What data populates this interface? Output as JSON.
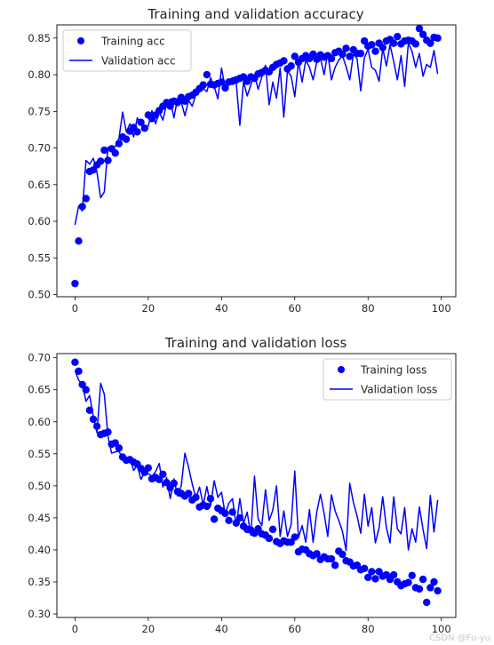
{
  "chart_data": [
    {
      "type": "line",
      "title": "Training and validation accuracy",
      "xlabel": "",
      "ylabel": "",
      "xlim": [
        -4.95,
        103.95
      ],
      "ylim": [
        0.497,
        0.868
      ],
      "xticks": [
        0,
        20,
        40,
        60,
        80,
        100
      ],
      "xtick_labels": [
        "0",
        "20",
        "40",
        "60",
        "80",
        "100"
      ],
      "yticks": [
        0.5,
        0.55,
        0.6,
        0.65,
        0.7,
        0.75,
        0.8,
        0.85
      ],
      "ytick_labels": [
        "0.50",
        "0.55",
        "0.60",
        "0.65",
        "0.70",
        "0.75",
        "0.80",
        "0.85"
      ],
      "grid": false,
      "legend_position": "top-left",
      "series": [
        {
          "name": "Training acc",
          "style": "scatter",
          "color": "#0000ff",
          "x": [
            0,
            1,
            2,
            3,
            4,
            5,
            6,
            7,
            8,
            9,
            10,
            11,
            12,
            13,
            14,
            15,
            16,
            17,
            18,
            19,
            20,
            21,
            22,
            23,
            24,
            25,
            26,
            27,
            28,
            29,
            30,
            31,
            32,
            33,
            34,
            35,
            36,
            37,
            38,
            39,
            40,
            41,
            42,
            43,
            44,
            45,
            46,
            47,
            48,
            49,
            50,
            51,
            52,
            53,
            54,
            55,
            56,
            57,
            58,
            59,
            60,
            61,
            62,
            63,
            64,
            65,
            66,
            67,
            68,
            69,
            70,
            71,
            72,
            73,
            74,
            75,
            76,
            77,
            78,
            79,
            80,
            81,
            82,
            83,
            84,
            85,
            86,
            87,
            88,
            89,
            90,
            91,
            92,
            93,
            94,
            95,
            96,
            97,
            98,
            99
          ],
          "values": [
            0.515,
            0.573,
            0.62,
            0.631,
            0.668,
            0.67,
            0.677,
            0.682,
            0.697,
            0.683,
            0.699,
            0.693,
            0.706,
            0.715,
            0.712,
            0.723,
            0.728,
            0.722,
            0.735,
            0.727,
            0.745,
            0.74,
            0.745,
            0.751,
            0.757,
            0.762,
            0.757,
            0.764,
            0.762,
            0.769,
            0.764,
            0.77,
            0.772,
            0.776,
            0.781,
            0.786,
            0.8,
            0.787,
            0.786,
            0.788,
            0.79,
            0.782,
            0.79,
            0.791,
            0.793,
            0.795,
            0.797,
            0.791,
            0.797,
            0.795,
            0.801,
            0.803,
            0.806,
            0.804,
            0.81,
            0.814,
            0.816,
            0.819,
            0.808,
            0.812,
            0.825,
            0.817,
            0.822,
            0.826,
            0.822,
            0.828,
            0.821,
            0.827,
            0.824,
            0.826,
            0.822,
            0.83,
            0.832,
            0.828,
            0.836,
            0.825,
            0.834,
            0.829,
            0.829,
            0.846,
            0.839,
            0.841,
            0.832,
            0.843,
            0.837,
            0.846,
            0.848,
            0.843,
            0.852,
            0.842,
            0.846,
            0.847,
            0.846,
            0.842,
            0.863,
            0.855,
            0.847,
            0.843,
            0.851,
            0.85
          ]
        },
        {
          "name": "Validation acc",
          "style": "line",
          "color": "#0000ff",
          "x": [
            0,
            1,
            2,
            3,
            4,
            5,
            6,
            7,
            8,
            9,
            10,
            11,
            12,
            13,
            14,
            15,
            16,
            17,
            18,
            19,
            20,
            21,
            22,
            23,
            24,
            25,
            26,
            27,
            28,
            29,
            30,
            31,
            32,
            33,
            34,
            35,
            36,
            37,
            38,
            39,
            40,
            41,
            42,
            43,
            44,
            45,
            46,
            47,
            48,
            49,
            50,
            51,
            52,
            53,
            54,
            55,
            56,
            57,
            58,
            59,
            60,
            61,
            62,
            63,
            64,
            65,
            66,
            67,
            68,
            69,
            70,
            71,
            72,
            73,
            74,
            75,
            76,
            77,
            78,
            79,
            80,
            81,
            82,
            83,
            84,
            85,
            86,
            87,
            88,
            89,
            90,
            91,
            92,
            93,
            94,
            95,
            96,
            97,
            98,
            99
          ],
          "values": [
            0.595,
            0.621,
            0.614,
            0.683,
            0.678,
            0.686,
            0.667,
            0.632,
            0.64,
            0.701,
            0.698,
            0.702,
            0.713,
            0.749,
            0.722,
            0.733,
            0.715,
            0.741,
            0.734,
            0.723,
            0.73,
            0.751,
            0.733,
            0.749,
            0.738,
            0.76,
            0.767,
            0.741,
            0.768,
            0.763,
            0.744,
            0.765,
            0.757,
            0.773,
            0.777,
            0.781,
            0.777,
            0.796,
            0.784,
            0.767,
            0.809,
            0.782,
            0.787,
            0.796,
            0.79,
            0.731,
            0.791,
            0.771,
            0.786,
            0.8,
            0.78,
            0.797,
            0.813,
            0.759,
            0.79,
            0.768,
            0.809,
            0.742,
            0.805,
            0.798,
            0.77,
            0.818,
            0.79,
            0.82,
            0.81,
            0.793,
            0.817,
            0.823,
            0.8,
            0.83,
            0.793,
            0.81,
            0.82,
            0.826,
            0.811,
            0.793,
            0.828,
            0.822,
            0.778,
            0.823,
            0.835,
            0.81,
            0.806,
            0.791,
            0.836,
            0.812,
            0.841,
            0.818,
            0.793,
            0.826,
            0.784,
            0.843,
            0.832,
            0.81,
            0.829,
            0.798,
            0.814,
            0.81,
            0.833,
            0.801
          ]
        }
      ]
    },
    {
      "type": "line",
      "title": "Training and validation loss",
      "xlabel": "",
      "ylabel": "",
      "xlim": [
        -4.95,
        103.95
      ],
      "ylim": [
        0.2945,
        0.7065
      ],
      "xticks": [
        0,
        20,
        40,
        60,
        80,
        100
      ],
      "xtick_labels": [
        "0",
        "20",
        "40",
        "60",
        "80",
        "100"
      ],
      "yticks": [
        0.3,
        0.35,
        0.4,
        0.45,
        0.5,
        0.55,
        0.6,
        0.65,
        0.7
      ],
      "ytick_labels": [
        "0.30",
        "0.35",
        "0.40",
        "0.45",
        "0.50",
        "0.55",
        "0.60",
        "0.65",
        "0.70"
      ],
      "grid": false,
      "legend_position": "top-right",
      "series": [
        {
          "name": "Training loss",
          "style": "scatter",
          "color": "#0000ff",
          "x": [
            0,
            1,
            2,
            3,
            4,
            5,
            6,
            7,
            8,
            9,
            10,
            11,
            12,
            13,
            14,
            15,
            16,
            17,
            18,
            19,
            20,
            21,
            22,
            23,
            24,
            25,
            26,
            27,
            28,
            29,
            30,
            31,
            32,
            33,
            34,
            35,
            36,
            37,
            38,
            39,
            40,
            41,
            42,
            43,
            44,
            45,
            46,
            47,
            48,
            49,
            50,
            51,
            52,
            53,
            54,
            55,
            56,
            57,
            58,
            59,
            60,
            61,
            62,
            63,
            64,
            65,
            66,
            67,
            68,
            69,
            70,
            71,
            72,
            73,
            74,
            75,
            76,
            77,
            78,
            79,
            80,
            81,
            82,
            83,
            84,
            85,
            86,
            87,
            88,
            89,
            90,
            91,
            92,
            93,
            94,
            95,
            96,
            97,
            98,
            99
          ],
          "values": [
            0.693,
            0.679,
            0.658,
            0.65,
            0.618,
            0.604,
            0.593,
            0.58,
            0.582,
            0.584,
            0.565,
            0.567,
            0.559,
            0.545,
            0.54,
            0.541,
            0.537,
            0.534,
            0.527,
            0.521,
            0.528,
            0.511,
            0.513,
            0.51,
            0.518,
            0.505,
            0.497,
            0.504,
            0.491,
            0.488,
            0.484,
            0.488,
            0.478,
            0.482,
            0.467,
            0.47,
            0.468,
            0.48,
            0.448,
            0.465,
            0.461,
            0.457,
            0.446,
            0.459,
            0.442,
            0.45,
            0.437,
            0.432,
            0.431,
            0.426,
            0.433,
            0.425,
            0.423,
            0.418,
            0.432,
            0.413,
            0.41,
            0.414,
            0.412,
            0.412,
            0.42,
            0.397,
            0.401,
            0.4,
            0.394,
            0.391,
            0.394,
            0.385,
            0.389,
            0.386,
            0.386,
            0.376,
            0.398,
            0.393,
            0.383,
            0.381,
            0.375,
            0.376,
            0.369,
            0.371,
            0.357,
            0.366,
            0.355,
            0.366,
            0.359,
            0.361,
            0.354,
            0.361,
            0.35,
            0.344,
            0.347,
            0.349,
            0.36,
            0.341,
            0.339,
            0.354,
            0.318,
            0.341,
            0.35,
            0.336
          ]
        },
        {
          "name": "Validation loss",
          "style": "line",
          "color": "#0000ff",
          "x": [
            0,
            1,
            2,
            3,
            4,
            5,
            6,
            7,
            8,
            9,
            10,
            11,
            12,
            13,
            14,
            15,
            16,
            17,
            18,
            19,
            20,
            21,
            22,
            23,
            24,
            25,
            26,
            27,
            28,
            29,
            30,
            31,
            32,
            33,
            34,
            35,
            36,
            37,
            38,
            39,
            40,
            41,
            42,
            43,
            44,
            45,
            46,
            47,
            48,
            49,
            50,
            51,
            52,
            53,
            54,
            55,
            56,
            57,
            58,
            59,
            60,
            61,
            62,
            63,
            64,
            65,
            66,
            67,
            68,
            69,
            70,
            71,
            72,
            73,
            74,
            75,
            76,
            77,
            78,
            79,
            80,
            81,
            82,
            83,
            84,
            85,
            86,
            87,
            88,
            89,
            90,
            91,
            92,
            93,
            94,
            95,
            96,
            97,
            98,
            99
          ],
          "values": [
            0.68,
            0.665,
            0.658,
            0.632,
            0.641,
            0.608,
            0.583,
            0.66,
            0.643,
            0.577,
            0.551,
            0.553,
            0.554,
            0.543,
            0.541,
            0.544,
            0.524,
            0.532,
            0.51,
            0.521,
            0.519,
            0.515,
            0.522,
            0.535,
            0.498,
            0.513,
            0.48,
            0.511,
            0.484,
            0.5,
            0.551,
            0.529,
            0.503,
            0.481,
            0.498,
            0.47,
            0.499,
            0.469,
            0.508,
            0.482,
            0.49,
            0.456,
            0.473,
            0.48,
            0.437,
            0.48,
            0.441,
            0.459,
            0.423,
            0.515,
            0.448,
            0.438,
            0.494,
            0.446,
            0.462,
            0.5,
            0.421,
            0.461,
            0.421,
            0.44,
            0.523,
            0.419,
            0.438,
            0.412,
            0.463,
            0.412,
            0.459,
            0.487,
            0.457,
            0.421,
            0.486,
            0.461,
            0.446,
            0.429,
            0.399,
            0.504,
            0.474,
            0.453,
            0.426,
            0.487,
            0.437,
            0.466,
            0.411,
            0.434,
            0.483,
            0.435,
            0.411,
            0.483,
            0.433,
            0.425,
            0.466,
            0.4,
            0.433,
            0.412,
            0.467,
            0.432,
            0.402,
            0.485,
            0.428,
            0.478
          ]
        }
      ]
    }
  ],
  "watermark": "CSDN @Fu-yu"
}
